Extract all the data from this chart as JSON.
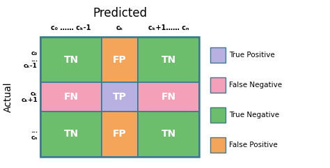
{
  "title": "Predicted",
  "ylabel": "Actual",
  "col_label_texts": [
    "c₀ …… cₖ-1",
    "cₖ",
    "cₖ+1…… cₙ"
  ],
  "row_label_groups": [
    [
      "c₀",
      "...",
      "cₖ-1"
    ],
    [
      "cₖ",
      "cₖ+1"
    ],
    [
      "...",
      "cₙ"
    ]
  ],
  "cell_texts": [
    [
      "TN",
      "FP",
      "TN"
    ],
    [
      "FN",
      "TP",
      "FN"
    ],
    [
      "TN",
      "FP",
      "TN"
    ]
  ],
  "cell_colors": [
    [
      "#6cbd6c",
      "#f5a55a",
      "#6cbd6c"
    ],
    [
      "#f4a0b8",
      "#b8b0e0",
      "#f4a0b8"
    ],
    [
      "#6cbd6c",
      "#f5a55a",
      "#6cbd6c"
    ]
  ],
  "border_color": "#3a7a90",
  "legend_items": [
    {
      "label": "True Positive",
      "color": "#b8b0e0"
    },
    {
      "label": "False Negative",
      "color": "#f4a0b8"
    },
    {
      "label": "True Negative",
      "color": "#6cbd6c"
    },
    {
      "label": "False Positive",
      "color": "#f5a55a"
    }
  ],
  "background_color": "#ffffff"
}
